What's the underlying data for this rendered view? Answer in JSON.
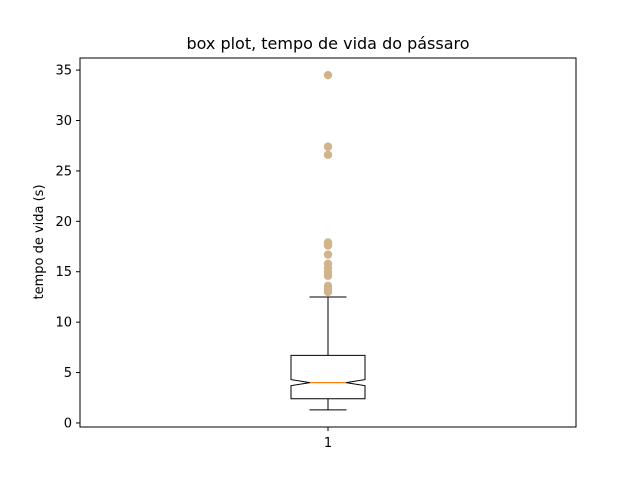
{
  "chart_data": {
    "type": "box",
    "title": "box plot, tempo de vida do pássaro",
    "xlabel": "",
    "ylabel": "tempo de vida (s)",
    "categories": [
      "1"
    ],
    "ylim": [
      -0.4,
      36.2
    ],
    "yticks": [
      0,
      5,
      10,
      15,
      20,
      25,
      30,
      35
    ],
    "notched": true,
    "boxes": [
      {
        "category": "1",
        "whisker_low": 1.3,
        "q1": 2.4,
        "median": 4.0,
        "q3": 6.7,
        "whisker_high": 12.5,
        "notch_low": 3.7,
        "notch_high": 4.3,
        "outliers": [
          13.0,
          13.3,
          13.6,
          14.6,
          15.0,
          15.4,
          15.8,
          16.7,
          17.6,
          17.9,
          26.6,
          27.4,
          34.5
        ]
      }
    ],
    "grid": false,
    "colors": {
      "box": "#000000",
      "median": "#ff7f0e",
      "outliers": "#d2b48c"
    }
  }
}
